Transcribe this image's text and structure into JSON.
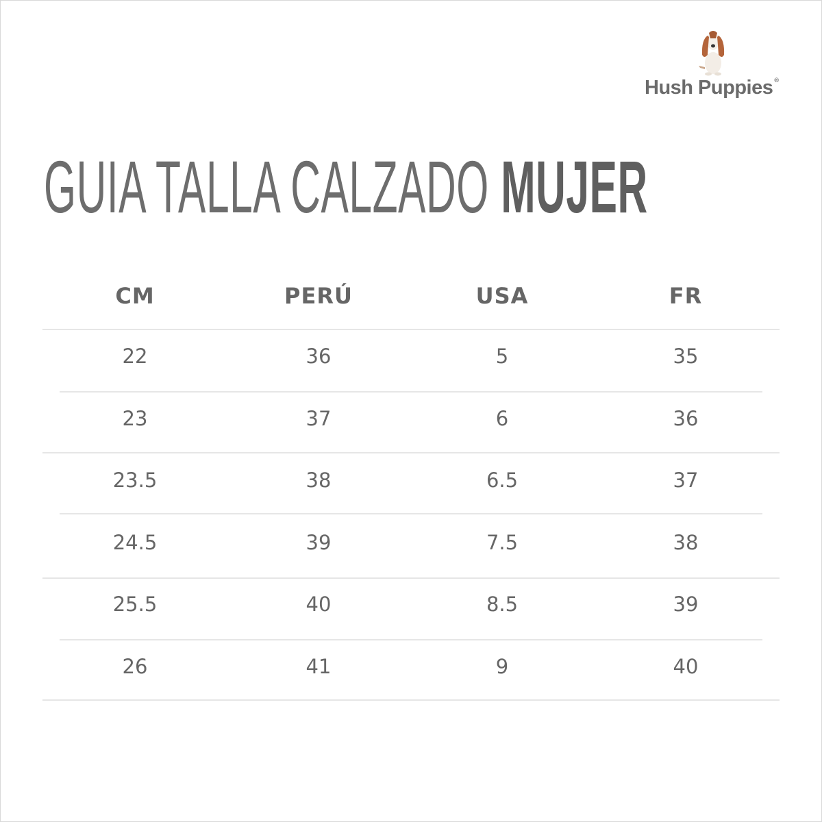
{
  "brand": {
    "name": "Hush Puppies",
    "registered": "®"
  },
  "title": {
    "regular": "GUIA TALLA CALZADO",
    "bold": "MUJER"
  },
  "table": {
    "headers": [
      "CM",
      "PERÚ",
      "USA",
      "FR"
    ],
    "rows": [
      [
        "22",
        "36",
        "5",
        "35"
      ],
      [
        "23",
        "37",
        "6",
        "36"
      ],
      [
        "23.5",
        "38",
        "6.5",
        "37"
      ],
      [
        "24.5",
        "39",
        "7.5",
        "38"
      ],
      [
        "25.5",
        "40",
        "8.5",
        "39"
      ],
      [
        "26",
        "41",
        "9",
        "40"
      ]
    ]
  },
  "colors": {
    "text": "#666666",
    "rule": "#e6e6e6"
  }
}
